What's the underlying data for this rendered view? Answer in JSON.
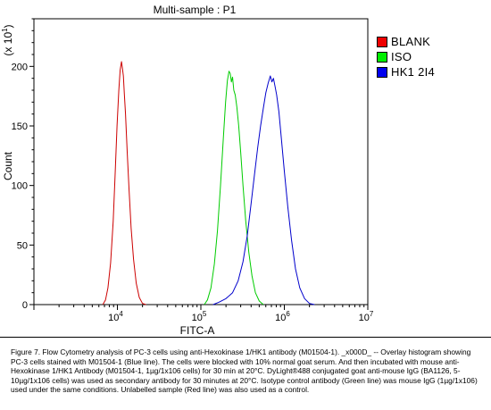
{
  "chart_data": {
    "type": "line",
    "title": "Multi-sample : P1",
    "xlabel": "FITC-A",
    "ylabel": "Count",
    "y_multiplier": "(x 10",
    "y_multiplier_exp": "1",
    "x_scale": "log",
    "xlim": [
      1000,
      10000000
    ],
    "ylim": [
      0,
      240
    ],
    "x_ticks": [
      {
        "value": 10000,
        "base": "10",
        "exp": "4"
      },
      {
        "value": 100000,
        "base": "10",
        "exp": "5"
      },
      {
        "value": 1000000,
        "base": "10",
        "exp": "6"
      },
      {
        "value": 10000000,
        "base": "10",
        "exp": "7"
      }
    ],
    "y_ticks": [
      0,
      50,
      100,
      150,
      200
    ],
    "legend_position": "right",
    "series": [
      {
        "name": "BLANK",
        "color": "#cc0000",
        "points": [
          [
            6700,
            0
          ],
          [
            7200,
            4
          ],
          [
            7700,
            14
          ],
          [
            8300,
            35
          ],
          [
            8900,
            70
          ],
          [
            9400,
            110
          ],
          [
            9900,
            150
          ],
          [
            10400,
            180
          ],
          [
            10800,
            197
          ],
          [
            11200,
            204
          ],
          [
            11500,
            198
          ],
          [
            11800,
            192
          ],
          [
            12100,
            178
          ],
          [
            12500,
            160
          ],
          [
            13100,
            128
          ],
          [
            13800,
            96
          ],
          [
            14600,
            64
          ],
          [
            15600,
            38
          ],
          [
            16800,
            18
          ],
          [
            18300,
            6
          ],
          [
            20000,
            1
          ],
          [
            22000,
            0
          ]
        ]
      },
      {
        "name": "ISO",
        "color": "#00cc00",
        "points": [
          [
            110000,
            0
          ],
          [
            120000,
            4
          ],
          [
            132000,
            14
          ],
          [
            145000,
            34
          ],
          [
            158000,
            62
          ],
          [
            172000,
            100
          ],
          [
            186000,
            140
          ],
          [
            198000,
            170
          ],
          [
            208000,
            188
          ],
          [
            217000,
            196
          ],
          [
            225000,
            194
          ],
          [
            232000,
            187
          ],
          [
            240000,
            191
          ],
          [
            248000,
            180
          ],
          [
            258000,
            176
          ],
          [
            270000,
            166
          ],
          [
            284000,
            150
          ],
          [
            300000,
            128
          ],
          [
            320000,
            100
          ],
          [
            345000,
            70
          ],
          [
            375000,
            44
          ],
          [
            410000,
            24
          ],
          [
            450000,
            10
          ],
          [
            500000,
            3
          ],
          [
            560000,
            0
          ]
        ]
      },
      {
        "name": "HK1 2I4",
        "color": "#0000cc",
        "points": [
          [
            140000,
            0
          ],
          [
            165000,
            2
          ],
          [
            200000,
            5
          ],
          [
            240000,
            10
          ],
          [
            280000,
            20
          ],
          [
            320000,
            36
          ],
          [
            360000,
            58
          ],
          [
            400000,
            85
          ],
          [
            440000,
            110
          ],
          [
            480000,
            132
          ],
          [
            520000,
            150
          ],
          [
            560000,
            165
          ],
          [
            600000,
            178
          ],
          [
            640000,
            186
          ],
          [
            680000,
            192
          ],
          [
            710000,
            187
          ],
          [
            740000,
            190
          ],
          [
            770000,
            184
          ],
          [
            810000,
            176
          ],
          [
            860000,
            162
          ],
          [
            920000,
            140
          ],
          [
            1000000,
            112
          ],
          [
            1100000,
            82
          ],
          [
            1220000,
            54
          ],
          [
            1360000,
            30
          ],
          [
            1530000,
            14
          ],
          [
            1750000,
            5
          ],
          [
            2000000,
            1
          ],
          [
            2300000,
            0
          ]
        ]
      }
    ]
  },
  "caption": "Figure 7. Flow Cytometry analysis of PC-3 cells using anti-Hexokinase 1/HK1 antibody (M01504-1). _x000D_ -- Overlay histogram showing PC-3 cells stained with M01504-1 (Blue line). The cells were blocked with 10% normal goat serum. And then incubated with mouse anti-Hexokinase 1/HK1 Antibody (M01504-1, 1µg/1x106 cells) for 30 min at 20°C. DyLight®488 conjugated goat anti-mouse IgG (BA1126, 5-10µg/1x106 cells) was used as secondary antibody for 30 minutes at 20°C. Isotype control antibody (Green line) was mouse IgG (1µg/1x106) used under the same conditions. Unlabelled sample (Red line) was also used as a control."
}
